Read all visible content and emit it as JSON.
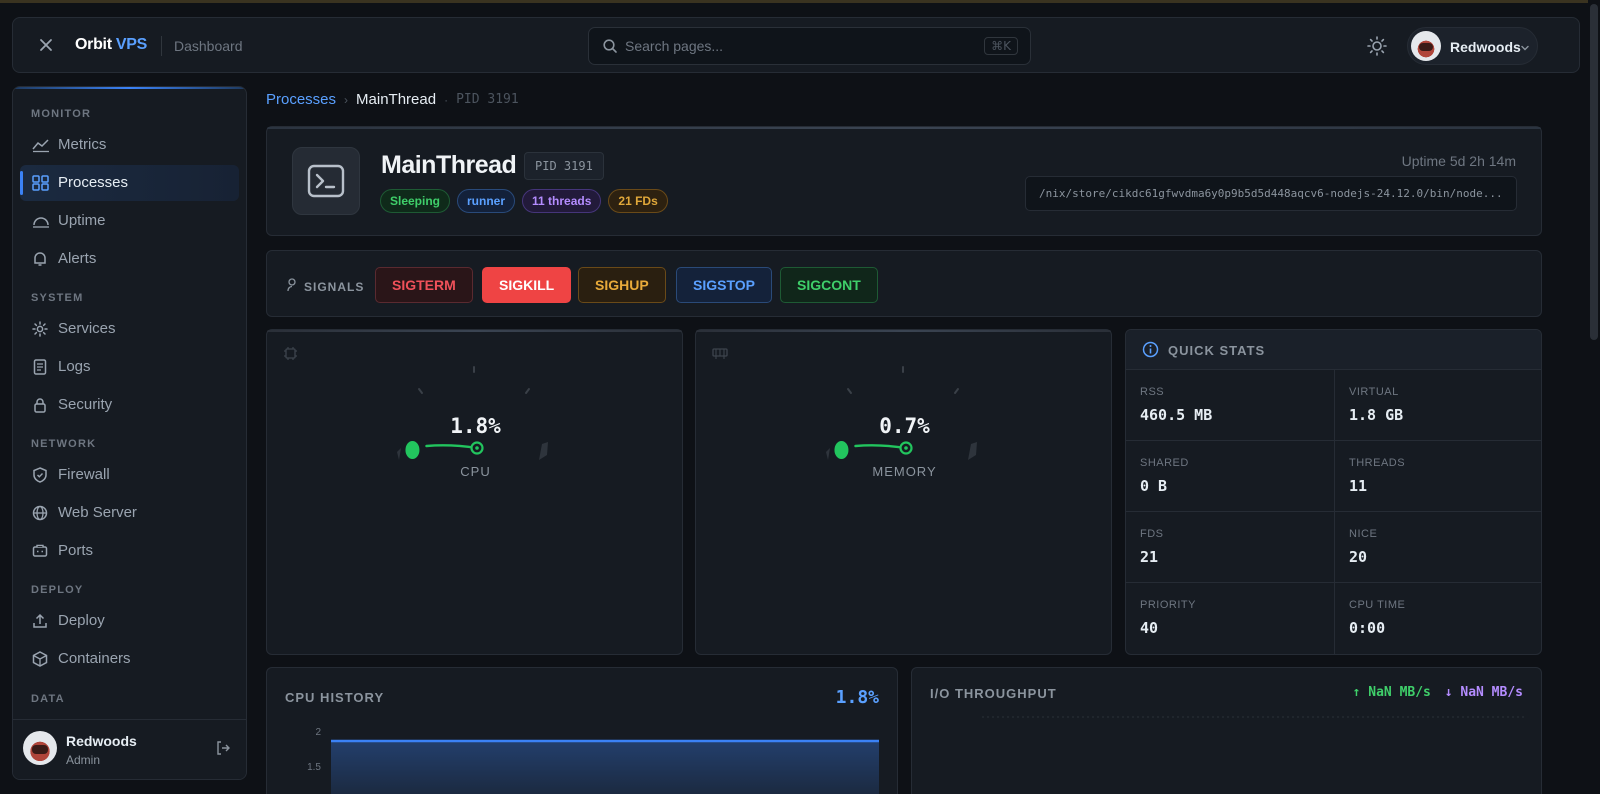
{
  "app": {
    "brand_main": "Orbit",
    "brand_accent": "VPS",
    "brand_sub": "Dashboard"
  },
  "search": {
    "placeholder": "Search pages...",
    "shortcut": "⌘K"
  },
  "user": {
    "name": "Redwoods",
    "role": "Admin"
  },
  "sidebar": {
    "sections": [
      {
        "title": "MONITOR",
        "items": [
          {
            "label": "Metrics",
            "icon": "chart-line-icon"
          },
          {
            "label": "Processes",
            "icon": "grid-icon",
            "active": true
          },
          {
            "label": "Uptime",
            "icon": "gauge-icon"
          },
          {
            "label": "Alerts",
            "icon": "bell-icon"
          }
        ]
      },
      {
        "title": "SYSTEM",
        "items": [
          {
            "label": "Services",
            "icon": "gear-icon"
          },
          {
            "label": "Logs",
            "icon": "document-icon"
          },
          {
            "label": "Security",
            "icon": "lock-icon"
          }
        ]
      },
      {
        "title": "NETWORK",
        "items": [
          {
            "label": "Firewall",
            "icon": "shield-icon"
          },
          {
            "label": "Web Server",
            "icon": "globe-icon"
          },
          {
            "label": "Ports",
            "icon": "port-icon"
          }
        ]
      },
      {
        "title": "DEPLOY",
        "items": [
          {
            "label": "Deploy",
            "icon": "upload-icon"
          },
          {
            "label": "Containers",
            "icon": "box-icon"
          }
        ]
      },
      {
        "title": "DATA",
        "items": []
      }
    ]
  },
  "breadcrumb": {
    "parent": "Processes",
    "current": "MainThread",
    "pid": "PID 3191"
  },
  "process": {
    "name": "MainThread",
    "pid": "PID 3191",
    "tags": [
      {
        "label": "Sleeping",
        "color": "green"
      },
      {
        "label": "runner",
        "color": "blue"
      },
      {
        "label": "11 threads",
        "color": "purple"
      },
      {
        "label": "21 FDs",
        "color": "amber"
      }
    ],
    "uptime": "Uptime 5d 2h 14m",
    "path": "/nix/store/cikdc61gfwvdma6y0p9b5d5d448aqcv6-nodejs-24.12.0/bin/node..."
  },
  "signals": {
    "label": "SIGNALS",
    "buttons": [
      {
        "label": "SIGTERM",
        "style": "red"
      },
      {
        "label": "SIGKILL",
        "style": "solid"
      },
      {
        "label": "SIGHUP",
        "style": "amber"
      },
      {
        "label": "SIGSTOP",
        "style": "blue"
      },
      {
        "label": "SIGCONT",
        "style": "green"
      }
    ]
  },
  "gauges": [
    {
      "label": "CPU",
      "value_text": "1.8%",
      "value": 1.8,
      "icon": "cpu-icon"
    },
    {
      "label": "MEMORY",
      "value_text": "0.7%",
      "value": 0.7,
      "icon": "memory-icon"
    }
  ],
  "quick_stats": {
    "title": "QUICK STATS",
    "items": [
      {
        "key": "RSS",
        "value": "460.5 MB"
      },
      {
        "key": "VIRTUAL",
        "value": "1.8 GB"
      },
      {
        "key": "SHARED",
        "value": "0 B"
      },
      {
        "key": "THREADS",
        "value": "11"
      },
      {
        "key": "FDS",
        "value": "21"
      },
      {
        "key": "NICE",
        "value": "20"
      },
      {
        "key": "PRIORITY",
        "value": "40"
      },
      {
        "key": "CPU TIME",
        "value": "0:00"
      }
    ]
  },
  "cpu_history": {
    "title": "CPU HISTORY",
    "value": "1.8%",
    "y_ticks": [
      "2",
      "1.5"
    ]
  },
  "io": {
    "title": "I/O THROUGHPUT",
    "up": "↑ NaN MB/s",
    "down": "↓ NaN MB/s"
  },
  "colors": {
    "accent": "#3b82f6",
    "gauge_ok": "#22c55e",
    "background": "#0e1116",
    "card": "#161b22"
  }
}
